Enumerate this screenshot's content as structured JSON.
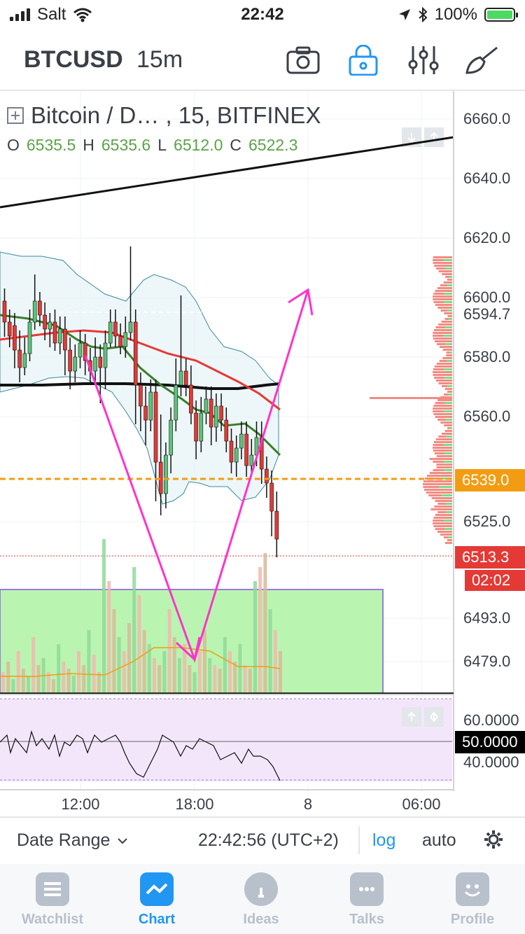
{
  "status_bar": {
    "carrier": "Salt",
    "time": "22:42",
    "battery": "100%"
  },
  "toolbar": {
    "symbol": "BTCUSD",
    "interval": "15m",
    "icons": [
      "camera-icon",
      "lock-icon",
      "indicators-icon",
      "drawing-tools-icon"
    ]
  },
  "legend": {
    "title": "Bitcoin / D…  , 15, BITFINEX",
    "ohlc": {
      "o_label": "O",
      "o": "6535.5",
      "h_label": "H",
      "h": "6535.6",
      "l_label": "L",
      "l": "6512.0",
      "c_label": "C",
      "c": "6522.3"
    }
  },
  "price_axis": {
    "labels": [
      "6660.0",
      "6640.0",
      "6620.0",
      "6600.0",
      "6580.0",
      "6560.0",
      "6525.0",
      "6493.0",
      "6479.0"
    ],
    "tag_6594": "6594.7",
    "tag_orange": "6539.0",
    "tag_last": "6513.3",
    "countdown": "02:02"
  },
  "rsi_axis": {
    "labels": [
      "60.0000",
      "40.0000"
    ],
    "level_tag": "50.0000"
  },
  "time_axis": {
    "labels": [
      "12:00",
      "18:00",
      "8",
      "06:00"
    ]
  },
  "bottom_bar": {
    "date_range": "Date Range",
    "clock": "22:42:56 (UTC+2)",
    "log": "log",
    "auto": "auto"
  },
  "tabs": [
    {
      "label": "Watchlist"
    },
    {
      "label": "Chart"
    },
    {
      "label": "Ideas"
    },
    {
      "label": "Talks"
    },
    {
      "label": "Profile"
    }
  ],
  "colors": {
    "up": "#5cc47a",
    "down": "#e53935",
    "accent": "#2196f3",
    "orange_line": "#f39c12",
    "magenta_drawing": "#ff33cc"
  },
  "chart_data": {
    "type": "candlestick",
    "symbol": "BTCUSD",
    "exchange": "BITFINEX",
    "interval": "15",
    "ylim": [
      6470,
      6665
    ],
    "price_ticks": [
      6479,
      6493,
      6525,
      6560,
      6580,
      6600,
      6620,
      6640,
      6660
    ],
    "horizontal_levels": {
      "orange_dashed": 6539.0,
      "last_price": 6513.3,
      "marker": 6594.7
    },
    "rsi": {
      "range": [
        30,
        70
      ],
      "levels": [
        40,
        50,
        60
      ]
    }
  }
}
